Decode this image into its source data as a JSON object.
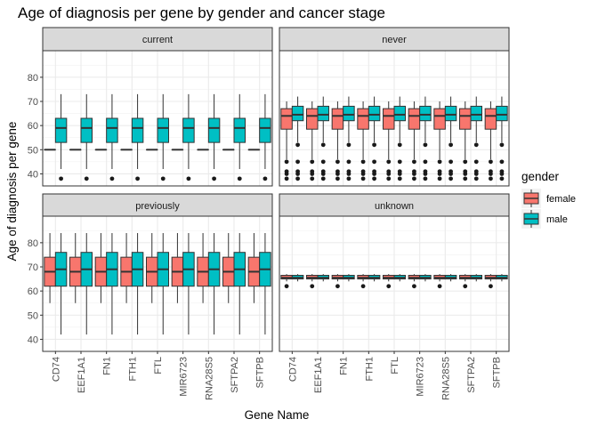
{
  "chart_data": {
    "type": "boxplot",
    "title": "Age of diagnosis per gene by gender and cancer stage",
    "xlabel": "Gene Name",
    "ylabel": "Age of diagnosis per gene",
    "categories": [
      "CD74",
      "EEF1A1",
      "FN1",
      "FTH1",
      "FTL",
      "MIR6723",
      "RNA28S5",
      "SFTPA2",
      "SFTPB"
    ],
    "ylim": [
      35,
      91
    ],
    "yticks": [
      40,
      50,
      60,
      70,
      80
    ],
    "grid": true,
    "facet_layout": "2x2",
    "legend": {
      "title": "gender",
      "position": "right",
      "entries": [
        {
          "name": "female",
          "color": "#F8766D"
        },
        {
          "name": "male",
          "color": "#00BFC4"
        }
      ]
    },
    "panels": [
      {
        "strip": "current",
        "series": {
          "female": {
            "min": 50,
            "q1": 50,
            "median": 50,
            "q3": 50,
            "max": 50,
            "outliers": []
          },
          "male": {
            "min": 42,
            "q1": 53,
            "median": 59,
            "q3": 63,
            "max": 73,
            "outliers": [
              38
            ]
          }
        }
      },
      {
        "strip": "never",
        "series": {
          "female": {
            "min": 46,
            "q1": 58.5,
            "median": 64,
            "q3": 67,
            "max": 70,
            "outliers": [
              45,
              41,
              40,
              38
            ]
          },
          "male": {
            "min": 53,
            "q1": 62,
            "median": 64.5,
            "q3": 68,
            "max": 72,
            "outliers": [
              52,
              45,
              41,
              40,
              38
            ]
          }
        }
      },
      {
        "strip": "previously",
        "series": {
          "female": {
            "min": 55,
            "q1": 62,
            "median": 68,
            "q3": 74,
            "max": 84,
            "outliers": []
          },
          "male": {
            "min": 42,
            "q1": 62,
            "median": 69,
            "q3": 76,
            "max": 84,
            "outliers": []
          }
        }
      },
      {
        "strip": "unknown",
        "series": {
          "female": {
            "min": 64,
            "q1": 65,
            "median": 65.5,
            "q3": 66.5,
            "max": 67,
            "outliers": [
              62
            ]
          },
          "male": {
            "min": 64,
            "q1": 65,
            "median": 65.5,
            "q3": 66.5,
            "max": 67,
            "outliers": []
          }
        }
      }
    ]
  }
}
